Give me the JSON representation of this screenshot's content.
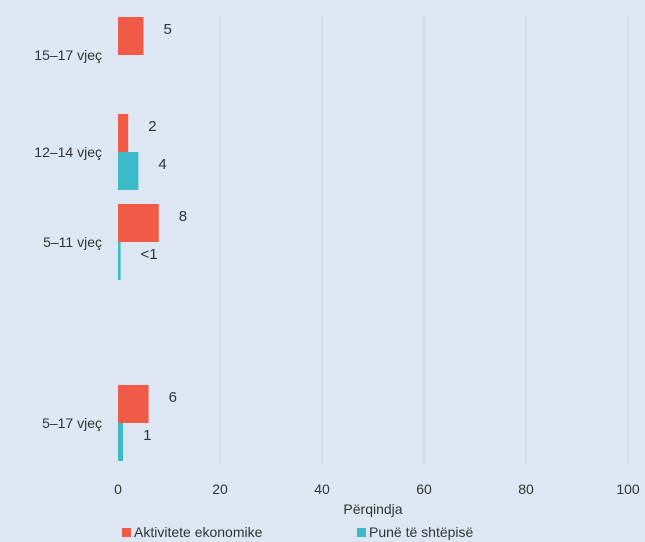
{
  "chart_data": {
    "type": "bar",
    "orientation": "horizontal",
    "xlabel": "Përqindja",
    "xlim": [
      0,
      100
    ],
    "xticks": [
      "0",
      "20",
      "40",
      "60",
      "80",
      "100"
    ],
    "grid": true,
    "legend_position": "bottom",
    "categories": [
      "15–17 vjeç",
      "12–14 vjeç",
      "5–11 vjeç",
      "5–17 vjeç"
    ],
    "series": [
      {
        "name": "Aktivitete ekonomike",
        "color": "#f05a47",
        "values": [
          5,
          2,
          8,
          6
        ],
        "labels": [
          "5",
          "2",
          "8",
          "6"
        ]
      },
      {
        "name": "Punë të shtëpisë",
        "color": "#3dbac8",
        "values": [
          null,
          4,
          0.5,
          1
        ],
        "labels": [
          "",
          "4",
          "<1",
          "1"
        ]
      }
    ]
  }
}
